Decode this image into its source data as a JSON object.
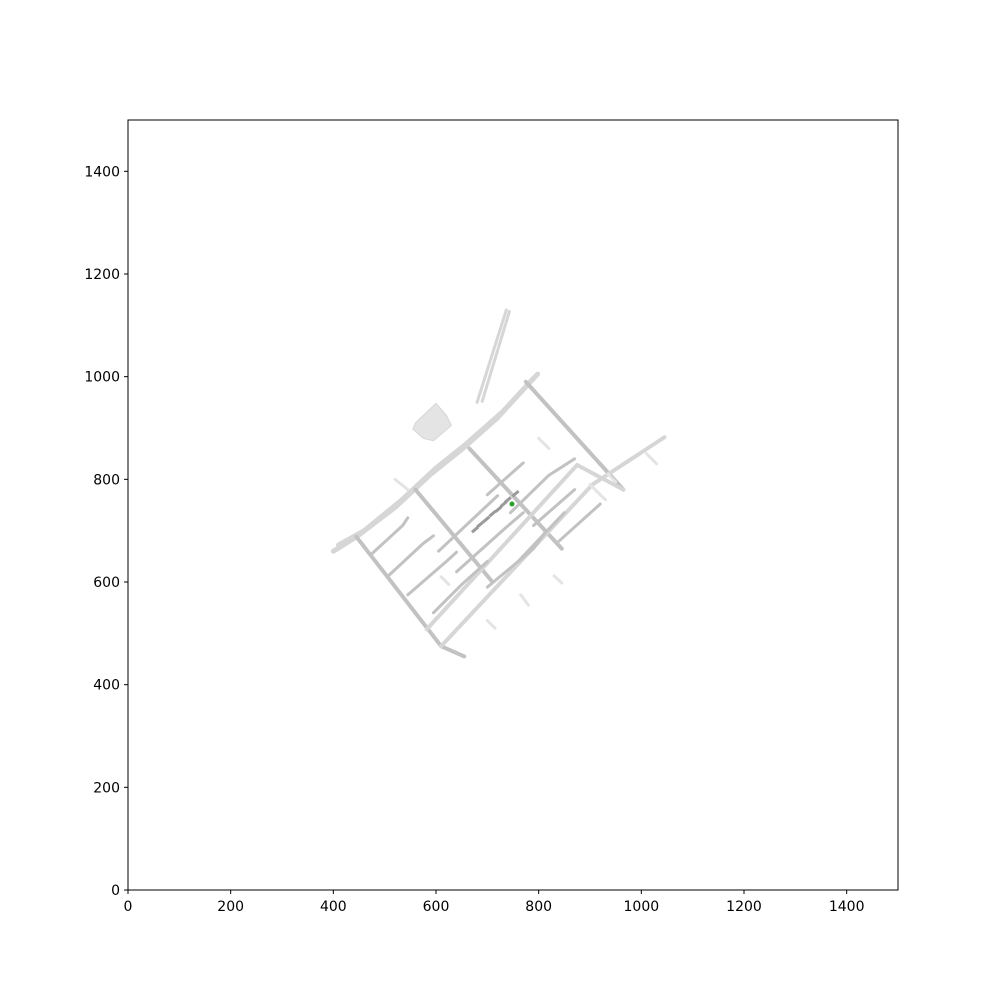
{
  "chart_data": {
    "type": "scatter",
    "title": "",
    "xlabel": "",
    "ylabel": "",
    "xlim": [
      0,
      1500
    ],
    "ylim": [
      0,
      1500
    ],
    "xticks": [
      0,
      200,
      400,
      600,
      800,
      1000,
      1200,
      1400
    ],
    "yticks": [
      0,
      200,
      400,
      600,
      800,
      1000,
      1200,
      1400
    ],
    "xtick_labels": [
      "0",
      "200",
      "400",
      "600",
      "800",
      "1000",
      "1200",
      "1400"
    ],
    "ytick_labels": [
      "0",
      "200",
      "400",
      "600",
      "800",
      "1000",
      "1200",
      "1400"
    ],
    "grid": false,
    "colors": {
      "road": "#d6d6d6",
      "road_light": "#e4e4e4",
      "road_dark": "#c2c2c2",
      "vehicle": "#9a9a9a",
      "ego": "#2ca02c"
    },
    "map_roads": [
      {
        "kind": "main",
        "points": [
          [
            400,
            660
          ],
          [
            445,
            688
          ],
          [
            520,
            745
          ],
          [
            590,
            810
          ],
          [
            650,
            858
          ],
          [
            720,
            920
          ],
          [
            790,
            997
          ]
        ]
      },
      {
        "kind": "main",
        "points": [
          [
            410,
            672
          ],
          [
            460,
            700
          ],
          [
            530,
            757
          ],
          [
            600,
            822
          ],
          [
            660,
            870
          ],
          [
            730,
            932
          ],
          [
            798,
            1005
          ]
        ]
      },
      {
        "kind": "connector",
        "points": [
          [
            680,
            950
          ],
          [
            737,
            1130
          ]
        ]
      },
      {
        "kind": "connector",
        "points": [
          [
            690,
            952
          ],
          [
            743,
            1127
          ]
        ]
      },
      {
        "kind": "cross",
        "points": [
          [
            445,
            688
          ],
          [
            610,
            475
          ],
          [
            655,
            455
          ]
        ]
      },
      {
        "kind": "cross",
        "points": [
          [
            560,
            780
          ],
          [
            710,
            600
          ]
        ]
      },
      {
        "kind": "cross",
        "points": [
          [
            665,
            860
          ],
          [
            845,
            665
          ]
        ]
      },
      {
        "kind": "cross",
        "points": [
          [
            775,
            990
          ],
          [
            965,
            780
          ]
        ]
      },
      {
        "kind": "long",
        "points": [
          [
            610,
            475
          ],
          [
            905,
            790
          ],
          [
            1045,
            882
          ]
        ]
      },
      {
        "kind": "long",
        "points": [
          [
            582,
            508
          ],
          [
            875,
            828
          ],
          [
            965,
            780
          ]
        ]
      },
      {
        "kind": "lane",
        "points": [
          [
            475,
            655
          ],
          [
            535,
            710
          ],
          [
            545,
            725
          ]
        ]
      },
      {
        "kind": "lane",
        "points": [
          [
            505,
            610
          ],
          [
            575,
            675
          ],
          [
            595,
            690
          ]
        ]
      },
      {
        "kind": "lane",
        "points": [
          [
            545,
            575
          ],
          [
            620,
            640
          ],
          [
            640,
            658
          ]
        ]
      },
      {
        "kind": "lane",
        "points": [
          [
            595,
            540
          ],
          [
            650,
            595
          ],
          [
            700,
            640
          ]
        ]
      },
      {
        "kind": "lane",
        "points": [
          [
            605,
            660
          ],
          [
            690,
            740
          ],
          [
            720,
            768
          ]
        ]
      },
      {
        "kind": "lane",
        "points": [
          [
            640,
            620
          ],
          [
            735,
            705
          ],
          [
            770,
            735
          ]
        ]
      },
      {
        "kind": "lane",
        "points": [
          [
            700,
            590
          ],
          [
            790,
            665
          ],
          [
            815,
            700
          ]
        ]
      },
      {
        "kind": "lane",
        "points": [
          [
            760,
            640
          ],
          [
            850,
            735
          ]
        ]
      },
      {
        "kind": "lane",
        "points": [
          [
            700,
            770
          ],
          [
            770,
            832
          ]
        ]
      },
      {
        "kind": "lane",
        "points": [
          [
            745,
            735
          ],
          [
            820,
            808
          ],
          [
            870,
            840
          ]
        ]
      },
      {
        "kind": "lane",
        "points": [
          [
            790,
            710
          ],
          [
            870,
            780
          ]
        ]
      },
      {
        "kind": "lane",
        "points": [
          [
            840,
            680
          ],
          [
            920,
            752
          ]
        ]
      },
      {
        "kind": "stub",
        "points": [
          [
            900,
            790
          ],
          [
            930,
            760
          ]
        ]
      },
      {
        "kind": "stub",
        "points": [
          [
            935,
            810
          ],
          [
            950,
            795
          ]
        ]
      },
      {
        "kind": "stub",
        "points": [
          [
            1010,
            850
          ],
          [
            1030,
            830
          ]
        ]
      },
      {
        "kind": "stub",
        "points": [
          [
            800,
            880
          ],
          [
            820,
            860
          ]
        ]
      },
      {
        "kind": "stub",
        "points": [
          [
            545,
            780
          ],
          [
            520,
            800
          ]
        ]
      },
      {
        "kind": "stub",
        "points": [
          [
            610,
            610
          ],
          [
            625,
            595
          ]
        ]
      },
      {
        "kind": "stub",
        "points": [
          [
            700,
            525
          ],
          [
            715,
            510
          ]
        ]
      },
      {
        "kind": "stub",
        "points": [
          [
            765,
            575
          ],
          [
            780,
            555
          ]
        ]
      },
      {
        "kind": "stub",
        "points": [
          [
            830,
            612
          ],
          [
            845,
            598
          ]
        ]
      }
    ],
    "parking_lot": [
      [
        560,
        910
      ],
      [
        600,
        948
      ],
      [
        620,
        925
      ],
      [
        630,
        905
      ],
      [
        595,
        875
      ],
      [
        575,
        880
      ],
      [
        555,
        898
      ]
    ],
    "vehicles": [
      {
        "x": 722,
        "y": 742,
        "heading_deg": 40
      },
      {
        "x": 710,
        "y": 733,
        "heading_deg": 40
      },
      {
        "x": 698,
        "y": 722,
        "heading_deg": 40
      },
      {
        "x": 686,
        "y": 712,
        "heading_deg": 40
      },
      {
        "x": 676,
        "y": 702,
        "heading_deg": 40
      },
      {
        "x": 732,
        "y": 752,
        "heading_deg": 40
      },
      {
        "x": 740,
        "y": 760,
        "heading_deg": 40
      },
      {
        "x": 755,
        "y": 772,
        "heading_deg": 40
      }
    ],
    "ego": {
      "x": 748,
      "y": 752
    }
  }
}
